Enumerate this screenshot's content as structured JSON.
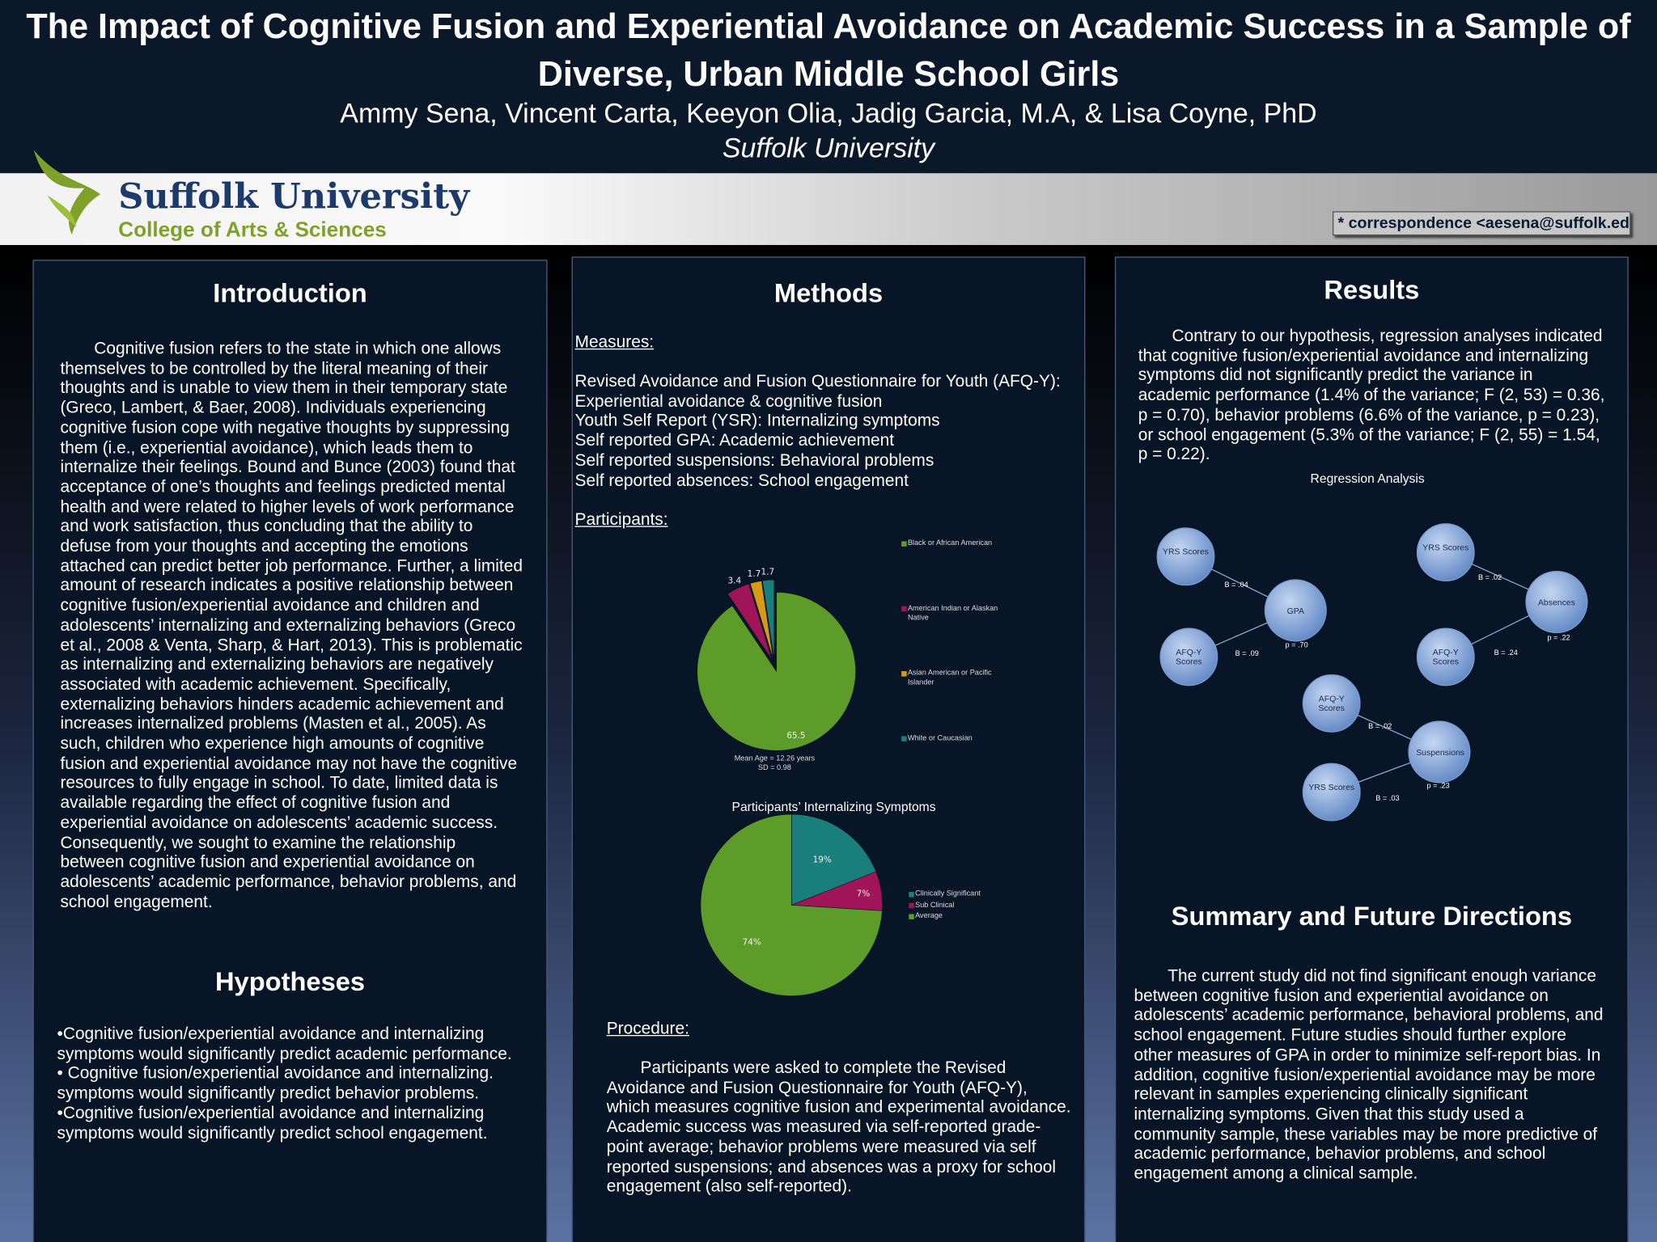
{
  "header": {
    "title": "The Impact of Cognitive Fusion and Experiential Avoidance on Academic Success in a Sample of Diverse, Urban Middle School Girls",
    "authors": "Ammy Sena, Vincent Carta, Keeyon Olia, Jadig Garcia, M.A, & Lisa Coyne, PhD",
    "affiliation": "Suffolk University",
    "logo_name": "Suffolk University",
    "logo_subtitle": "College of Arts & Sciences",
    "correspondence": "* correspondence <aesena@suffolk.edu"
  },
  "introduction": {
    "heading": "Introduction",
    "text": "Cognitive fusion refers to the state in which one allows themselves to be controlled by the literal meaning of their thoughts and is unable to view them in their temporary state (Greco, Lambert, & Baer, 2008). Individuals experiencing cognitive fusion cope with negative thoughts by suppressing them (i.e., experiential avoidance), which leads them to internalize their feelings. Bound and Bunce (2003) found that acceptance of one’s thoughts and feelings predicted mental health and were related to higher levels of work performance and work satisfaction, thus concluding that the ability to defuse from your thoughts and accepting the emotions attached can predict better job performance. Further, a  limited amount of research indicates a positive relationship between cognitive fusion/experiential avoidance and children and adolescents’ internalizing and externalizing behaviors (Greco et al., 2008 & Venta, Sharp, & Hart, 2013). This is problematic as internalizing and externalizing behaviors are negatively associated with academic achievement. Specifically, externalizing behaviors hinders academic achievement and increases internalized problems (Masten et al., 2005). As such, children who experience high amounts of cognitive fusion and experiential avoidance may not have the cognitive resources to fully engage in school. To date, limited data is available regarding the effect of cognitive fusion and experiential avoidance on adolescents’ academic success. Consequently, we sought to examine the relationship between cognitive fusion and experiential avoidance on adolescents’ academic performance, behavior problems, and school engagement."
  },
  "hypotheses": {
    "heading": "Hypotheses",
    "items": [
      "•Cognitive fusion/experiential avoidance and internalizing symptoms would significantly predict academic performance.",
      "• Cognitive fusion/experiential avoidance and internalizing. symptoms would significantly predict behavior problems.",
      "•Cognitive fusion/experiential avoidance and internalizing symptoms would significantly predict school engagement."
    ]
  },
  "methods": {
    "heading": "Methods",
    "measures_heading": "Measures:",
    "measures": [
      "Revised Avoidance and Fusion Questionnaire for Youth (AFQ-Y):",
      "Experiential avoidance & cognitive fusion",
      "Youth Self Report (YSR): Internalizing symptoms",
      "Self reported GPA: Academic achievement",
      "Self reported suspensions: Behavioral problems",
      "Self reported absences: School engagement"
    ],
    "participants_heading": "Participants:",
    "procedure_heading": "Procedure:",
    "procedure_text": "Participants were asked to complete the Revised Avoidance and Fusion Questionnaire for Youth (AFQ-Y), which measures cognitive fusion and experimental avoidance. Academic success was measured via self-reported grade-point average; behavior problems were measured via self reported suspensions; and absences was a proxy for school engagement (also self-reported)."
  },
  "chart_data": [
    {
      "type": "pie",
      "categories": [
        "Black or African American",
        "American Indian or Alaskan Native",
        "Asian American or Pacific Islander",
        "White or Caucasian"
      ],
      "values": [
        65.5,
        3.4,
        1.7,
        1.7
      ],
      "colors": [
        "#5e9c2a",
        "#a0145a",
        "#d89a12",
        "#1a7f7a"
      ],
      "annotations": [
        "Mean Age = 12.26 years",
        "SD = 0.98"
      ]
    },
    {
      "type": "pie",
      "title": "Participants’ Internalizing Symptoms",
      "categories": [
        "Clinically Significant",
        "Sub Clinical",
        "Average"
      ],
      "values": [
        19,
        7,
        74
      ],
      "value_labels": [
        "19%",
        "7%",
        "74%"
      ],
      "colors": [
        "#1a7f7a",
        "#a0145a",
        "#5e9c2a"
      ]
    }
  ],
  "results": {
    "heading": "Results",
    "text": "Contrary to our hypothesis, regression analyses indicated that cognitive fusion/experiential avoidance and internalizing symptoms did not significantly predict the variance in academic performance (1.4% of the variance; F (2, 53) = 0.36, p = 0.70), behavior problems (6.6% of the variance, p = 0.23), or school engagement (5.3% of the variance; F (2, 55) = 1.54, p = 0.22).",
    "diagram": {
      "title": "Regression Analysis",
      "nodes": [
        {
          "label": "YRS Scores"
        },
        {
          "label": "AFQ-Y Scores"
        },
        {
          "label": "GPA",
          "stat": "p = .70"
        },
        {
          "label": "YRS Scores"
        },
        {
          "label": "AFQ-Y Scores"
        },
        {
          "label": "Absences",
          "stat": "p = .22"
        },
        {
          "label": "AFQ-Y Scores"
        },
        {
          "label": "YRS Scores"
        },
        {
          "label": "Suspensions",
          "stat": "p = .23"
        }
      ],
      "edges": [
        {
          "label": "B = .04"
        },
        {
          "label": "B = .09"
        },
        {
          "label": "B = .02"
        },
        {
          "label": "B = .24"
        },
        {
          "label": "B = .02"
        },
        {
          "label": "B = .03"
        }
      ]
    }
  },
  "summary": {
    "heading": "Summary and Future Directions",
    "text": "The current study did not find significant enough variance between cognitive fusion and experiential avoidance on adolescents’ academic performance, behavioral problems, and school engagement. Future studies should further explore other measures of GPA in order to minimize self-report bias. In addition, cognitive fusion/experiential avoidance may be more relevant in samples experiencing clinically significant internalizing symptoms. Given that this study used a community sample, these variables may be more predictive of academic performance, behavior problems, and school engagement among a clinical sample."
  }
}
